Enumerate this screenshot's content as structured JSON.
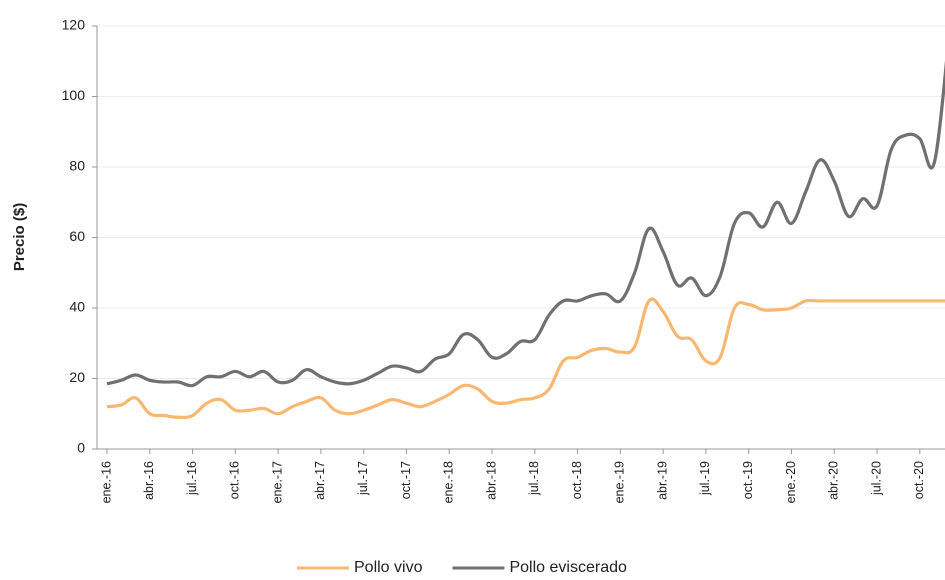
{
  "chart_data": {
    "type": "line",
    "ylabel": "Precio ($)",
    "categories": [
      "ene.-16",
      null,
      null,
      "abr.-16",
      null,
      null,
      "jul.-16",
      null,
      null,
      "oct.-16",
      null,
      null,
      "ene.-17",
      null,
      null,
      "abr.-17",
      null,
      null,
      "jul.-17",
      null,
      null,
      "oct.-17",
      null,
      null,
      "ene.-18",
      null,
      null,
      "abr.-18",
      null,
      null,
      "jul.-18",
      null,
      null,
      "oct.-18",
      null,
      null,
      "ene.-19",
      null,
      null,
      "abr.-19",
      null,
      null,
      "jul.-19",
      null,
      null,
      "oct.-19",
      null,
      null,
      "ene.-20",
      null,
      null,
      "abr.-20",
      null,
      null,
      "jul.-20",
      null,
      null,
      "oct.-20",
      null,
      null
    ],
    "series": [
      {
        "name": "Pollo vivo",
        "color": "#f9b872",
        "values": [
          12,
          12.5,
          14.5,
          10,
          9.5,
          9,
          9.5,
          13,
          14,
          11,
          11,
          11.5,
          10,
          12,
          13.5,
          14.5,
          11,
          10,
          11,
          12.5,
          14,
          13,
          12,
          13.5,
          15.5,
          18,
          17,
          13.5,
          13,
          14,
          14.5,
          17,
          25,
          26,
          28,
          28.5,
          27.5,
          29,
          42,
          39,
          32,
          31,
          25,
          26,
          40,
          41,
          39.5,
          39.5,
          40,
          42,
          42,
          42,
          42,
          42,
          42,
          42,
          42,
          42,
          42,
          42
        ]
      },
      {
        "name": "Pollo eviscerado",
        "color": "#707070",
        "values": [
          18.5,
          19.5,
          21,
          19.5,
          19,
          19,
          18,
          20.5,
          20.5,
          22,
          20.5,
          22,
          19,
          19.5,
          22.5,
          20.5,
          19,
          18.5,
          19.5,
          21.5,
          23.5,
          23,
          22,
          25.5,
          27,
          32.5,
          31,
          26,
          27,
          30.5,
          31,
          38,
          42,
          42,
          43.5,
          44,
          42,
          50,
          62.5,
          56,
          46.5,
          48.5,
          43.5,
          49,
          64,
          67,
          63,
          70,
          64,
          73,
          82,
          76,
          66,
          71,
          69,
          85,
          89,
          88,
          81,
          115
        ]
      }
    ],
    "ylim": [
      0,
      120
    ],
    "yticks": [
      0,
      20,
      40,
      60,
      80,
      100,
      120
    ],
    "grid": true,
    "legend": "bottom"
  }
}
